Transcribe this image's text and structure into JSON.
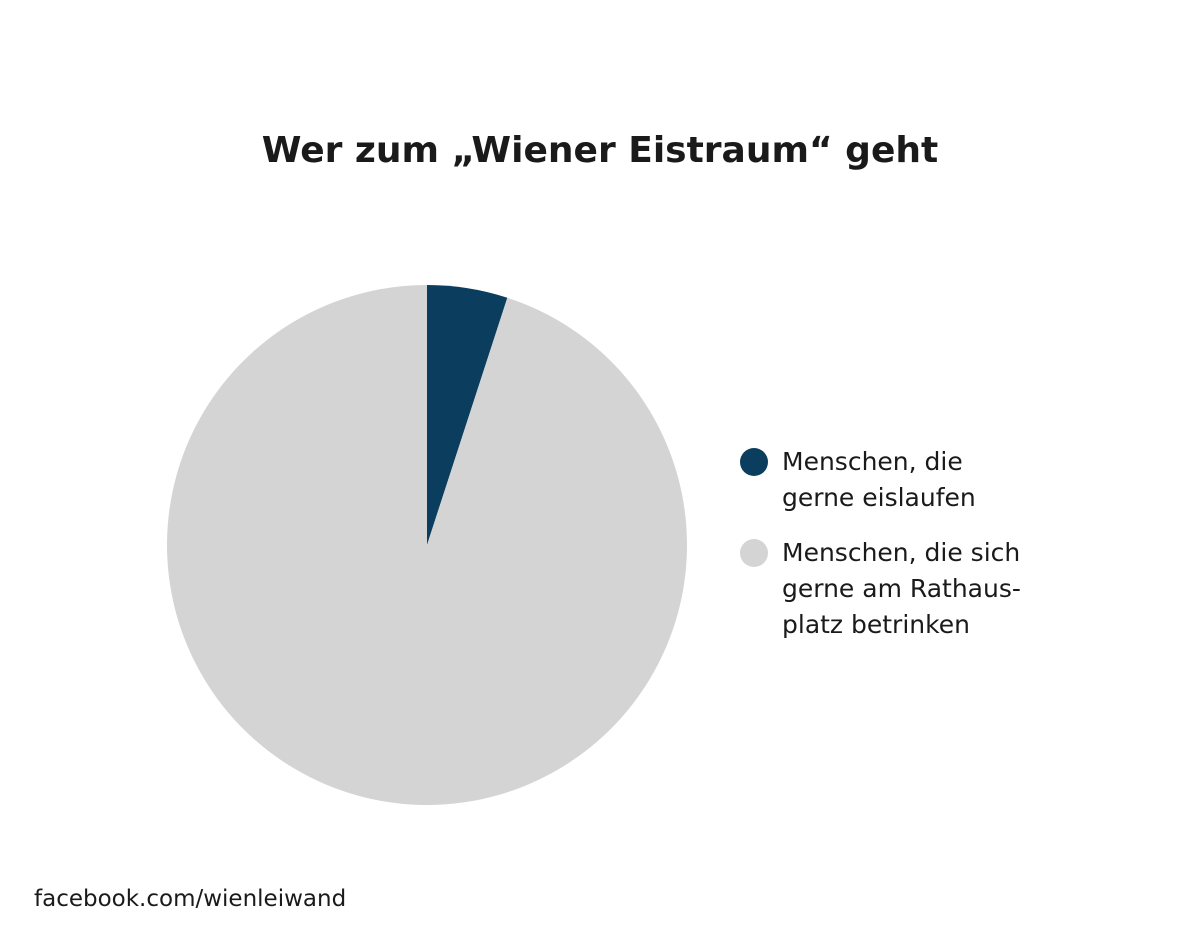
{
  "chart_data": {
    "type": "pie",
    "title": "Wer zum „Wiener Eistraum“ geht",
    "categories": [
      "Menschen, die\ngerne eislaufen",
      "Menschen, die sich\ngerne am Rathaus-\nplatz betrinken"
    ],
    "values": [
      5,
      95
    ],
    "colors": [
      "#0b3d5e",
      "#d4d4d4"
    ],
    "legend": "right",
    "source": "facebook.com/wienleiwand"
  }
}
